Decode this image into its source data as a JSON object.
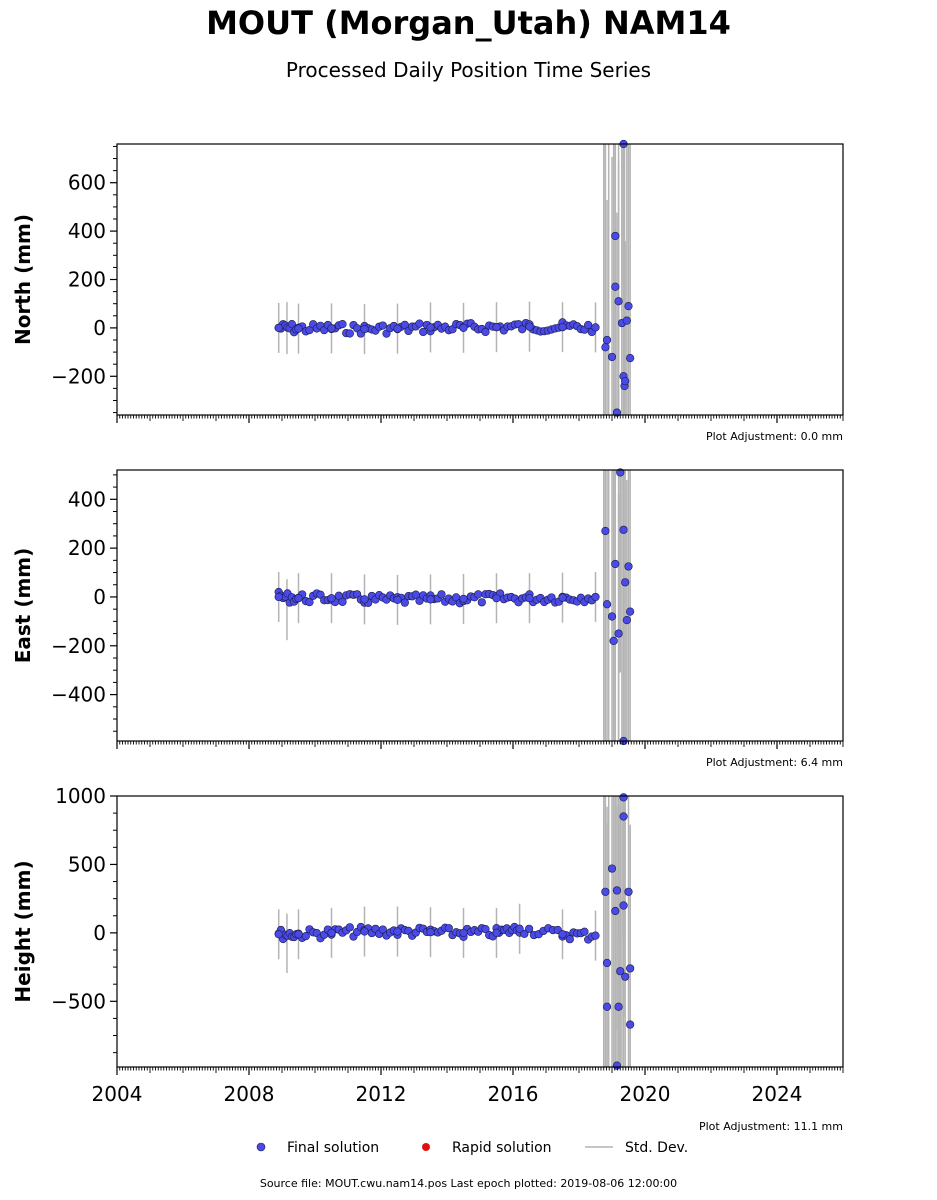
{
  "title": "MOUT (Morgan_Utah) NAM14",
  "subtitle": "Processed Daily Position Time Series",
  "footer": "Source file: MOUT.cwu.nam14.pos  Last epoch plotted: 2019-08-06 12:00:00",
  "legend": {
    "final": "Final solution",
    "rapid": "Rapid solution",
    "std": "Std. Dev."
  },
  "colors": {
    "final": "#4a4ae6",
    "rapid": "#dd1111",
    "std": "#b4b4b4"
  },
  "chart_data": [
    {
      "type": "scatter",
      "ylabel": "North (mm)",
      "adjustment": "Plot Adjustment: 0.0 mm",
      "xlim": [
        2004,
        2026
      ],
      "ylim": [
        -360,
        760
      ],
      "yticks": [
        -200,
        0,
        200,
        400,
        600
      ],
      "series": [
        {
          "name": "Final solution",
          "points": [
            [
              2008.9,
              0
            ],
            [
              2009.5,
              -3
            ],
            [
              2010.5,
              -2
            ],
            [
              2011.5,
              -5
            ],
            [
              2012.5,
              -3
            ],
            [
              2013.5,
              2
            ],
            [
              2014.5,
              0
            ],
            [
              2015.5,
              3
            ],
            [
              2016.5,
              5
            ],
            [
              2017.5,
              3
            ],
            [
              2018.5,
              2
            ],
            [
              2018.8,
              -80
            ],
            [
              2018.85,
              -50
            ],
            [
              2019.0,
              -120
            ],
            [
              2019.1,
              170
            ],
            [
              2019.1,
              380
            ],
            [
              2019.2,
              110
            ],
            [
              2019.3,
              20
            ],
            [
              2019.35,
              -200
            ],
            [
              2019.38,
              -240
            ],
            [
              2019.4,
              -220
            ],
            [
              2019.45,
              30
            ],
            [
              2019.5,
              90
            ],
            [
              2019.55,
              -125
            ],
            [
              2019.35,
              760
            ],
            [
              2019.15,
              -350
            ]
          ]
        }
      ]
    },
    {
      "type": "scatter",
      "ylabel": "East (mm)",
      "adjustment": "Plot Adjustment: 6.4 mm",
      "xlim": [
        2004,
        2026
      ],
      "ylim": [
        -590,
        520
      ],
      "yticks": [
        -400,
        -200,
        0,
        200,
        400
      ],
      "series": [
        {
          "name": "Final solution",
          "points": [
            [
              2008.9,
              0
            ],
            [
              2009.5,
              -5
            ],
            [
              2010.5,
              -5
            ],
            [
              2011.5,
              -10
            ],
            [
              2012.5,
              -12
            ],
            [
              2013.5,
              -10
            ],
            [
              2014.5,
              -8
            ],
            [
              2015.5,
              -5
            ],
            [
              2016.5,
              -5
            ],
            [
              2017.5,
              -3
            ],
            [
              2018.5,
              0
            ],
            [
              2018.8,
              270
            ],
            [
              2018.85,
              -30
            ],
            [
              2019.0,
              -80
            ],
            [
              2019.05,
              -180
            ],
            [
              2019.1,
              135
            ],
            [
              2019.2,
              -150
            ],
            [
              2019.25,
              510
            ],
            [
              2019.35,
              275
            ],
            [
              2019.4,
              60
            ],
            [
              2019.45,
              -95
            ],
            [
              2019.5,
              125
            ],
            [
              2019.55,
              -60
            ],
            [
              2019.35,
              -590
            ]
          ]
        }
      ]
    },
    {
      "type": "scatter",
      "ylabel": "Height (mm)",
      "adjustment": "Plot Adjustment: 11.1 mm",
      "xlim": [
        2004,
        2026
      ],
      "ylim": [
        -980,
        1000
      ],
      "yticks": [
        -500,
        0,
        500,
        1000
      ],
      "xticks": [
        2004,
        2008,
        2012,
        2016,
        2020,
        2024
      ],
      "series": [
        {
          "name": "Final solution",
          "points": [
            [
              2008.9,
              -10
            ],
            [
              2009.5,
              -10
            ],
            [
              2010.5,
              0
            ],
            [
              2011.5,
              10
            ],
            [
              2012.5,
              10
            ],
            [
              2013.5,
              5
            ],
            [
              2014.5,
              0
            ],
            [
              2015.5,
              0
            ],
            [
              2016.2,
              30
            ],
            [
              2017.5,
              -10
            ],
            [
              2018.5,
              -20
            ],
            [
              2018.8,
              300
            ],
            [
              2018.85,
              -220
            ],
            [
              2018.85,
              -540
            ],
            [
              2019.0,
              470
            ],
            [
              2019.1,
              160
            ],
            [
              2019.15,
              310
            ],
            [
              2019.2,
              -540
            ],
            [
              2019.25,
              -280
            ],
            [
              2019.35,
              200
            ],
            [
              2019.35,
              990
            ],
            [
              2019.35,
              850
            ],
            [
              2019.4,
              -320
            ],
            [
              2019.5,
              300
            ],
            [
              2019.55,
              -260
            ],
            [
              2019.55,
              -670
            ],
            [
              2019.15,
              -970
            ]
          ]
        }
      ]
    }
  ]
}
